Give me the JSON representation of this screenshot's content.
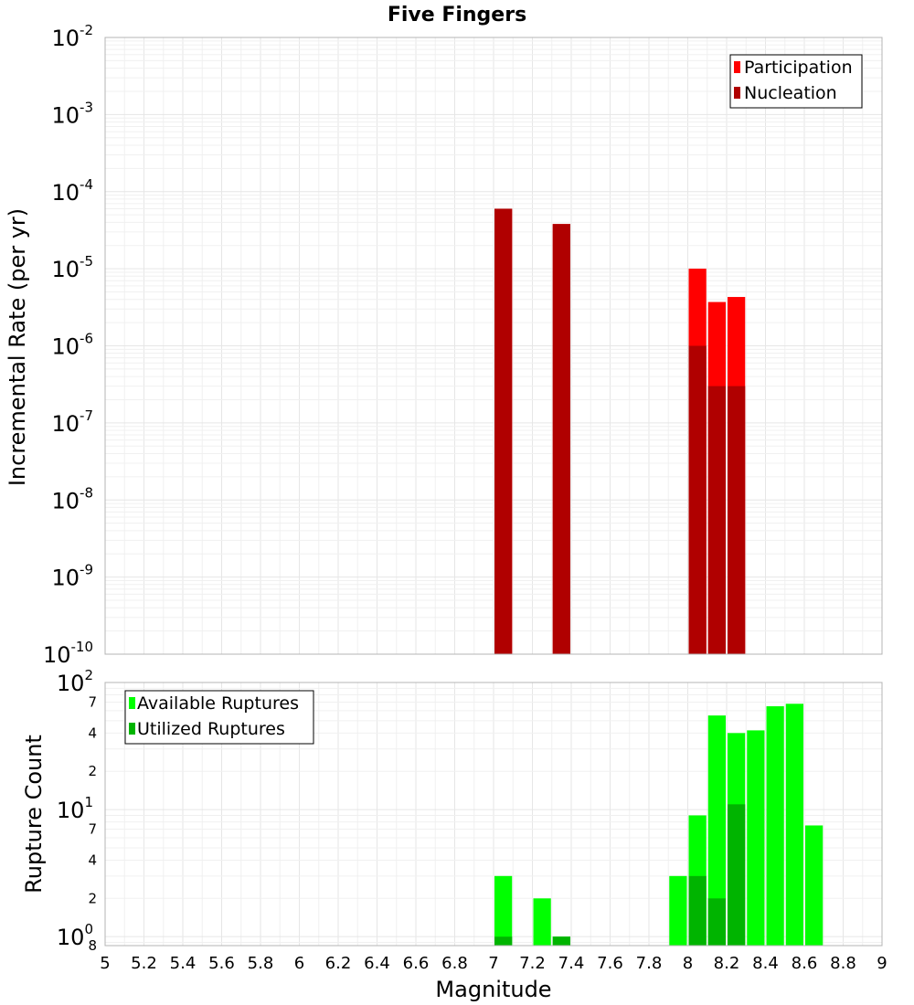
{
  "chart_data": {
    "type": "bar",
    "title": "Five Fingers",
    "xlabel": "Magnitude",
    "xlim": [
      5,
      9
    ],
    "x_ticks": [
      "5",
      "5.2",
      "5.4",
      "5.6",
      "5.8",
      "6",
      "6.2",
      "6.4",
      "6.6",
      "6.8",
      "7",
      "7.2",
      "7.4",
      "7.6",
      "7.8",
      "8",
      "8.2",
      "8.4",
      "8.6",
      "8.8",
      "9"
    ],
    "panels": [
      {
        "ylabel": "Incremental Rate (per yr)",
        "yscale": "log",
        "ylim": [
          1e-10,
          0.01
        ],
        "y_ticks": [
          {
            "base": "10",
            "exp": "-10"
          },
          {
            "base": "10",
            "exp": "-9"
          },
          {
            "base": "10",
            "exp": "-8"
          },
          {
            "base": "10",
            "exp": "-7"
          },
          {
            "base": "10",
            "exp": "-6"
          },
          {
            "base": "10",
            "exp": "-5"
          },
          {
            "base": "10",
            "exp": "-4"
          },
          {
            "base": "10",
            "exp": "-3"
          },
          {
            "base": "10",
            "exp": "-2"
          }
        ],
        "legend_position": "top-right",
        "series": [
          {
            "name": "Participation",
            "color": "#ff0000",
            "points": [
              {
                "x": 7.05,
                "y": 6e-05
              },
              {
                "x": 7.35,
                "y": 3.8e-05
              },
              {
                "x": 8.05,
                "y": 1e-05
              },
              {
                "x": 8.15,
                "y": 3.7e-06
              },
              {
                "x": 8.25,
                "y": 4.3e-06
              }
            ]
          },
          {
            "name": "Nucleation",
            "color": "#b00000",
            "points": [
              {
                "x": 7.05,
                "y": 6e-05
              },
              {
                "x": 7.35,
                "y": 3.8e-05
              },
              {
                "x": 8.05,
                "y": 1e-06
              },
              {
                "x": 8.15,
                "y": 3e-07
              },
              {
                "x": 8.25,
                "y": 3e-07
              }
            ]
          }
        ]
      },
      {
        "ylabel": "Rupture Count",
        "yscale": "log",
        "ylim": [
          0.85,
          100
        ],
        "y_ticks": [
          {
            "base": "10",
            "exp": "0"
          },
          {
            "base": "10",
            "exp": "1"
          },
          {
            "base": "10",
            "exp": "2"
          }
        ],
        "y_minor_ticks": [
          {
            "label": "8",
            "value": 0.8
          },
          {
            "label": "2",
            "value": 2
          },
          {
            "label": "4",
            "value": 4
          },
          {
            "label": "7",
            "value": 7
          },
          {
            "label": "2",
            "value": 20
          },
          {
            "label": "4",
            "value": 40
          },
          {
            "label": "7",
            "value": 70
          }
        ],
        "legend_position": "top-left",
        "series": [
          {
            "name": "Available Ruptures",
            "color": "#00ff00",
            "points": [
              {
                "x": 7.05,
                "y": 3
              },
              {
                "x": 7.25,
                "y": 2
              },
              {
                "x": 7.35,
                "y": 1
              },
              {
                "x": 7.95,
                "y": 3
              },
              {
                "x": 8.05,
                "y": 9
              },
              {
                "x": 8.15,
                "y": 55
              },
              {
                "x": 8.25,
                "y": 40
              },
              {
                "x": 8.35,
                "y": 42
              },
              {
                "x": 8.45,
                "y": 65
              },
              {
                "x": 8.55,
                "y": 68
              },
              {
                "x": 8.65,
                "y": 7.5
              }
            ]
          },
          {
            "name": "Utilized Ruptures",
            "color": "#00b400",
            "points": [
              {
                "x": 7.05,
                "y": 1
              },
              {
                "x": 7.35,
                "y": 1
              },
              {
                "x": 8.05,
                "y": 3
              },
              {
                "x": 8.15,
                "y": 2
              },
              {
                "x": 8.25,
                "y": 11
              }
            ]
          }
        ]
      }
    ]
  }
}
